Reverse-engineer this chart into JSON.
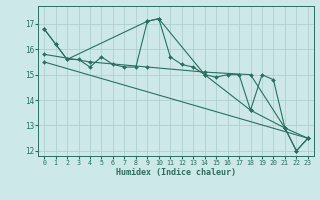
{
  "title": "",
  "xlabel": "Humidex (Indice chaleur)",
  "background_color": "#cce8e8",
  "grid_color": "#aacccc",
  "line_color": "#2a7060",
  "spine_color": "#2a7060",
  "tick_color": "#2a7060",
  "xlim": [
    -0.5,
    23.5
  ],
  "ylim": [
    11.8,
    17.7
  ],
  "yticks": [
    12,
    13,
    14,
    15,
    16,
    17
  ],
  "xticks": [
    0,
    1,
    2,
    3,
    4,
    5,
    6,
    7,
    8,
    9,
    10,
    11,
    12,
    13,
    14,
    15,
    16,
    17,
    18,
    19,
    20,
    21,
    22,
    23
  ],
  "series": [
    {
      "x": [
        0,
        1,
        2,
        3,
        4,
        5,
        6,
        7,
        8,
        9,
        10,
        11,
        12,
        13,
        14,
        15,
        16,
        17,
        18,
        19,
        20,
        21,
        22,
        23
      ],
      "y": [
        16.8,
        16.2,
        15.6,
        15.6,
        15.3,
        15.7,
        15.4,
        15.3,
        15.3,
        17.1,
        17.2,
        15.7,
        15.4,
        15.3,
        15.0,
        14.9,
        15.0,
        15.0,
        13.6,
        15.0,
        14.8,
        12.9,
        12.0,
        12.5
      ]
    },
    {
      "x": [
        0,
        1,
        2,
        9,
        10,
        14,
        18,
        21,
        22,
        23
      ],
      "y": [
        16.8,
        16.2,
        15.6,
        17.1,
        17.2,
        15.0,
        13.6,
        12.9,
        12.0,
        12.5
      ]
    },
    {
      "x": [
        0,
        4,
        9,
        14,
        18,
        21,
        23
      ],
      "y": [
        15.8,
        15.5,
        15.3,
        15.1,
        15.0,
        12.9,
        12.5
      ]
    },
    {
      "x": [
        0,
        23
      ],
      "y": [
        15.5,
        12.5
      ]
    }
  ]
}
